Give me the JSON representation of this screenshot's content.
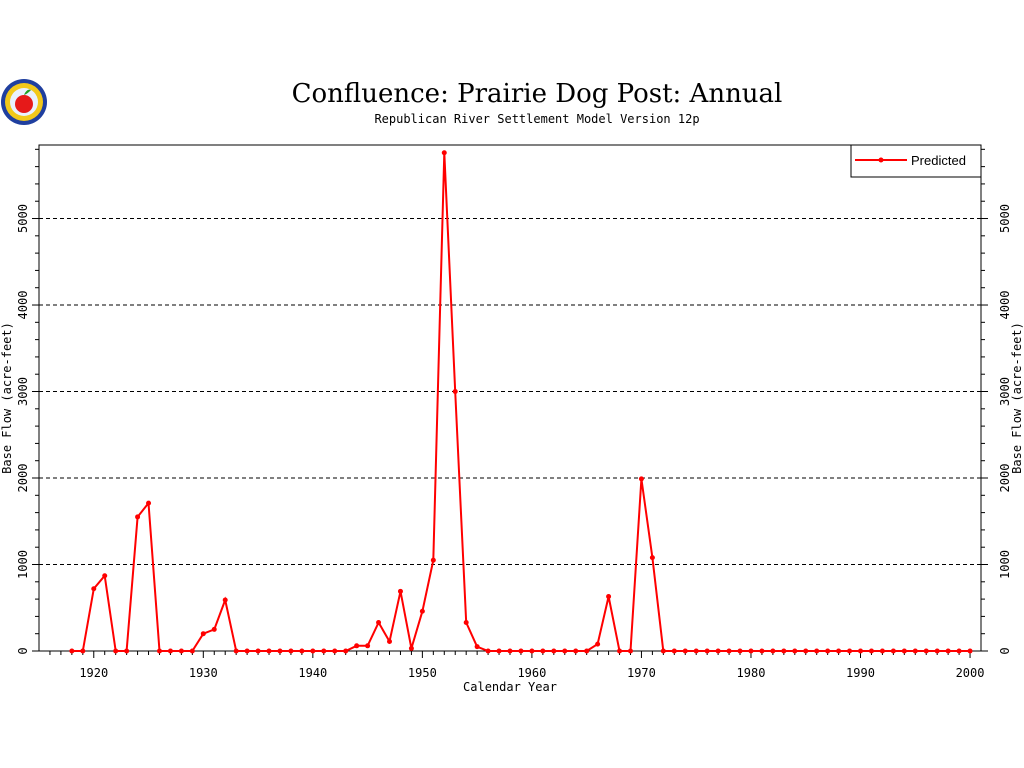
{
  "chart_data": {
    "type": "line",
    "title": "Confluence: Prairie Dog Post: Annual",
    "subtitle": "Republican River Settlement Model Version 12p",
    "xlabel": "Calendar Year",
    "ylabel": "Base Flow (acre-feet)",
    "xlim": [
      1915,
      2001
    ],
    "ylim": [
      0,
      5850
    ],
    "xticks": [
      1920,
      1930,
      1940,
      1950,
      1960,
      1970,
      1980,
      1990,
      2000
    ],
    "yticks": [
      0,
      1000,
      2000,
      3000,
      4000,
      5000
    ],
    "grid": "horizontal dashed",
    "legend_position": "top-right",
    "series": [
      {
        "name": "Predicted",
        "color": "#ff0000",
        "x": [
          1918,
          1919,
          1920,
          1921,
          1922,
          1923,
          1924,
          1925,
          1926,
          1927,
          1928,
          1929,
          1930,
          1931,
          1932,
          1933,
          1934,
          1935,
          1936,
          1937,
          1938,
          1939,
          1940,
          1941,
          1942,
          1943,
          1944,
          1945,
          1946,
          1947,
          1948,
          1949,
          1950,
          1951,
          1952,
          1953,
          1954,
          1955,
          1956,
          1957,
          1958,
          1959,
          1960,
          1961,
          1962,
          1963,
          1964,
          1965,
          1966,
          1967,
          1968,
          1969,
          1970,
          1971,
          1972,
          1973,
          1974,
          1975,
          1976,
          1977,
          1978,
          1979,
          1980,
          1981,
          1982,
          1983,
          1984,
          1985,
          1986,
          1987,
          1988,
          1989,
          1990,
          1991,
          1992,
          1993,
          1994,
          1995,
          1996,
          1997,
          1998,
          1999,
          2000
        ],
        "values": [
          0,
          0,
          720,
          870,
          0,
          0,
          1550,
          1710,
          0,
          0,
          0,
          0,
          200,
          250,
          590,
          0,
          0,
          0,
          0,
          0,
          0,
          0,
          0,
          0,
          0,
          0,
          60,
          60,
          330,
          110,
          690,
          30,
          460,
          1050,
          5760,
          3000,
          330,
          50,
          0,
          0,
          0,
          0,
          0,
          0,
          0,
          0,
          0,
          0,
          80,
          630,
          0,
          0,
          1990,
          1080,
          0,
          0,
          0,
          0,
          0,
          0,
          0,
          0,
          0,
          0,
          0,
          0,
          0,
          0,
          0,
          0,
          0,
          0,
          0,
          0,
          0,
          0,
          0,
          0,
          0,
          0,
          0,
          0,
          0
        ]
      }
    ]
  },
  "logo": {
    "name": "apple-logo"
  }
}
